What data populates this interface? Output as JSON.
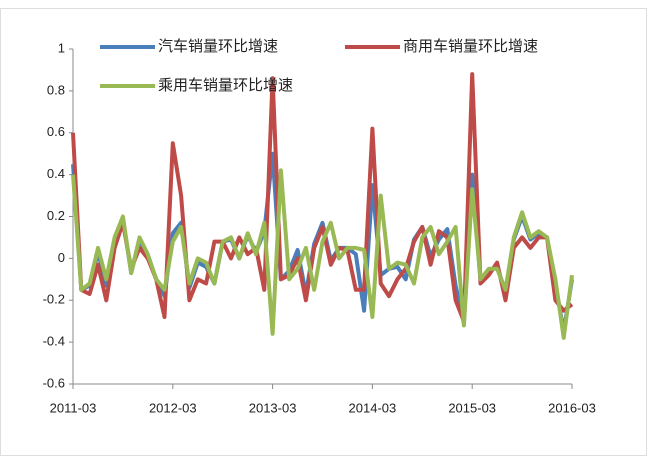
{
  "chart_data": {
    "type": "line",
    "categories": [
      "2011-03",
      null,
      null,
      null,
      null,
      null,
      null,
      null,
      null,
      null,
      null,
      null,
      "2012-03",
      null,
      null,
      null,
      null,
      null,
      null,
      null,
      null,
      null,
      null,
      null,
      "2013-03",
      null,
      null,
      null,
      null,
      null,
      null,
      null,
      null,
      null,
      null,
      null,
      "2014-03",
      null,
      null,
      null,
      null,
      null,
      null,
      null,
      null,
      null,
      null,
      null,
      "2015-03",
      null,
      null,
      null,
      null,
      null,
      null,
      null,
      null,
      null,
      null,
      null,
      "2016-03"
    ],
    "series": [
      {
        "name": "汽车销量环比增速",
        "color": "#4a7ebb",
        "values": [
          0.45,
          -0.15,
          -0.13,
          0.03,
          -0.13,
          0.09,
          0.19,
          -0.07,
          0.09,
          0.01,
          -0.1,
          -0.18,
          0.12,
          0.17,
          -0.14,
          -0.02,
          -0.04,
          -0.12,
          0.08,
          0.09,
          0,
          0.11,
          0.03,
          0.13,
          0.5,
          -0.1,
          -0.06,
          0.04,
          -0.17,
          0.07,
          0.17,
          -0.01,
          0.05,
          0.05,
          0.02,
          -0.25,
          0.35,
          -0.08,
          -0.05,
          -0.04,
          -0.1,
          0.09,
          0.15,
          0.01,
          0.09,
          0.14,
          -0.13,
          -0.31,
          0.4,
          -0.11,
          -0.06,
          -0.04,
          -0.16,
          0.09,
          0.2,
          0.09,
          0.12,
          0.1,
          -0.12,
          -0.35,
          -0.1
        ]
      },
      {
        "name": "商用车销量环比增速",
        "color": "#be4b48",
        "values": [
          0.6,
          -0.15,
          -0.17,
          -0.03,
          -0.2,
          0.05,
          0.17,
          -0.05,
          0.05,
          0,
          -0.1,
          -0.28,
          0.55,
          0.3,
          -0.2,
          -0.1,
          -0.12,
          0.08,
          0.08,
          0,
          0.1,
          0.02,
          0.05,
          -0.15,
          0.86,
          -0.1,
          -0.08,
          0,
          -0.2,
          0.05,
          0.15,
          -0.03,
          0.05,
          0.04,
          -0.15,
          -0.15,
          0.62,
          -0.12,
          -0.18,
          -0.1,
          -0.05,
          0.08,
          0.15,
          -0.03,
          0.13,
          0.1,
          -0.2,
          -0.3,
          0.88,
          -0.12,
          -0.08,
          -0.02,
          -0.2,
          0.05,
          0.1,
          0.05,
          0.1,
          0.1,
          -0.2,
          -0.25,
          -0.22
        ]
      },
      {
        "name": "乘用车销量环比增速",
        "color": "#98b954",
        "values": [
          0.4,
          -0.15,
          -0.12,
          0.05,
          -0.1,
          0.1,
          0.2,
          -0.07,
          0.1,
          0.02,
          -0.1,
          -0.15,
          0.08,
          0.15,
          -0.12,
          0,
          -0.02,
          -0.12,
          0.08,
          0.1,
          0,
          0.12,
          0.02,
          0.17,
          -0.36,
          0.42,
          -0.1,
          -0.05,
          0.05,
          -0.15,
          0.08,
          0.17,
          0,
          0.05,
          0.05,
          0.04,
          -0.28,
          0.3,
          -0.05,
          -0.02,
          -0.03,
          -0.12,
          0.1,
          0.15,
          0.02,
          0.08,
          0.15,
          -0.32,
          0.33,
          -0.1,
          -0.05,
          -0.05,
          -0.15,
          0.1,
          0.22,
          0.1,
          0.13,
          0.1,
          -0.1,
          -0.38,
          -0.08
        ]
      }
    ],
    "ylim": [
      -0.6,
      1
    ],
    "yticks": [
      -0.6,
      -0.4,
      -0.2,
      0,
      0.2,
      0.4,
      0.6,
      0.8,
      1
    ]
  }
}
